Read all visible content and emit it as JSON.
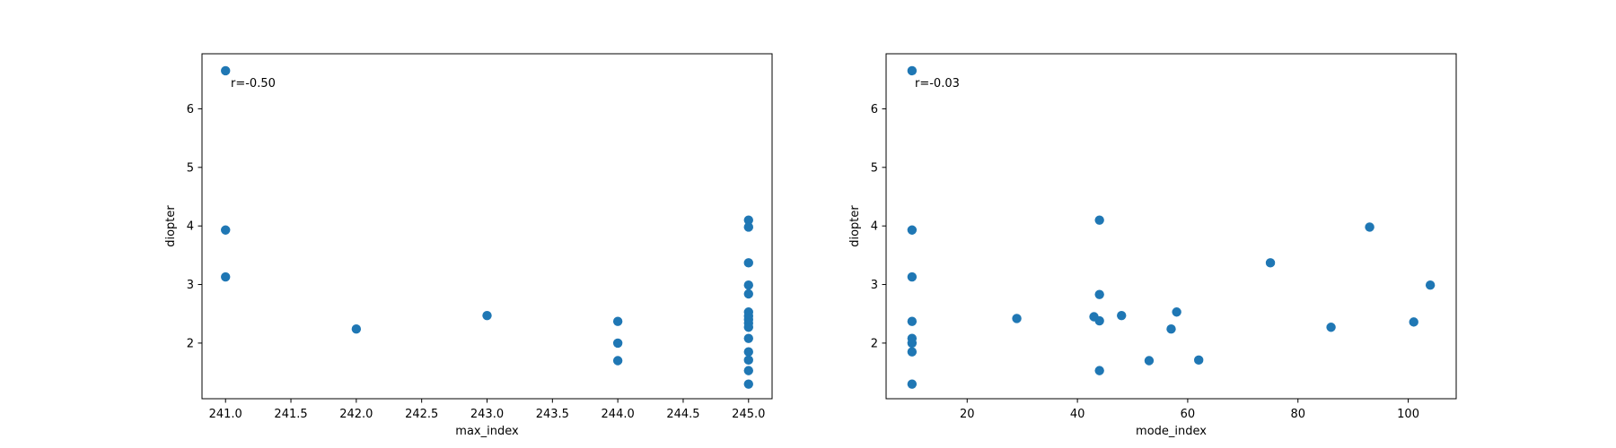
{
  "chart_data": [
    {
      "type": "scatter",
      "xlabel": "max_index",
      "ylabel": "diopter",
      "annotation": "r=-0.50",
      "xlim": [
        240.82,
        245.18
      ],
      "ylim": [
        1.05,
        6.94
      ],
      "xticks": [
        241.0,
        241.5,
        242.0,
        242.5,
        243.0,
        243.5,
        244.0,
        244.5,
        245.0
      ],
      "xtick_labels": [
        "241.0",
        "241.5",
        "242.0",
        "242.5",
        "243.0",
        "243.5",
        "244.0",
        "244.5",
        "245.0"
      ],
      "yticks": [
        2,
        3,
        4,
        5,
        6
      ],
      "ytick_labels": [
        "2",
        "3",
        "4",
        "5",
        "6"
      ],
      "color": "#1f77b4",
      "grid": false,
      "points": [
        {
          "x": 241,
          "y": 6.65
        },
        {
          "x": 241,
          "y": 3.93
        },
        {
          "x": 241,
          "y": 3.13
        },
        {
          "x": 242,
          "y": 2.24
        },
        {
          "x": 243,
          "y": 2.47
        },
        {
          "x": 244,
          "y": 2.37
        },
        {
          "x": 244,
          "y": 2.0
        },
        {
          "x": 244,
          "y": 1.7
        },
        {
          "x": 245,
          "y": 4.1
        },
        {
          "x": 245,
          "y": 3.98
        },
        {
          "x": 245,
          "y": 3.37
        },
        {
          "x": 245,
          "y": 2.99
        },
        {
          "x": 245,
          "y": 2.84
        },
        {
          "x": 245,
          "y": 2.53
        },
        {
          "x": 245,
          "y": 2.46
        },
        {
          "x": 245,
          "y": 2.4
        },
        {
          "x": 245,
          "y": 2.34
        },
        {
          "x": 245,
          "y": 2.27
        },
        {
          "x": 245,
          "y": 2.08
        },
        {
          "x": 245,
          "y": 1.85
        },
        {
          "x": 245,
          "y": 1.71
        },
        {
          "x": 245,
          "y": 1.53
        },
        {
          "x": 245,
          "y": 1.3
        }
      ]
    },
    {
      "type": "scatter",
      "xlabel": "mode_index",
      "ylabel": "diopter",
      "annotation": "r=-0.03",
      "xlim": [
        5.3,
        108.7
      ],
      "ylim": [
        1.05,
        6.94
      ],
      "xticks": [
        20,
        40,
        60,
        80,
        100
      ],
      "xtick_labels": [
        "20",
        "40",
        "60",
        "80",
        "100"
      ],
      "yticks": [
        2,
        3,
        4,
        5,
        6
      ],
      "ytick_labels": [
        "2",
        "3",
        "4",
        "5",
        "6"
      ],
      "color": "#1f77b4",
      "grid": false,
      "points": [
        {
          "x": 10,
          "y": 6.65
        },
        {
          "x": 10,
          "y": 3.93
        },
        {
          "x": 10,
          "y": 3.13
        },
        {
          "x": 10,
          "y": 2.37
        },
        {
          "x": 10,
          "y": 2.08
        },
        {
          "x": 10,
          "y": 2.0
        },
        {
          "x": 10,
          "y": 1.85
        },
        {
          "x": 10,
          "y": 1.3
        },
        {
          "x": 29,
          "y": 2.42
        },
        {
          "x": 43,
          "y": 2.45
        },
        {
          "x": 44,
          "y": 4.1
        },
        {
          "x": 44,
          "y": 2.83
        },
        {
          "x": 44,
          "y": 2.38
        },
        {
          "x": 44,
          "y": 1.53
        },
        {
          "x": 48,
          "y": 2.47
        },
        {
          "x": 53,
          "y": 1.7
        },
        {
          "x": 57,
          "y": 2.24
        },
        {
          "x": 58,
          "y": 2.53
        },
        {
          "x": 62,
          "y": 1.71
        },
        {
          "x": 75,
          "y": 3.37
        },
        {
          "x": 86,
          "y": 2.27
        },
        {
          "x": 93,
          "y": 3.98
        },
        {
          "x": 101,
          "y": 2.36
        },
        {
          "x": 104,
          "y": 2.99
        }
      ]
    }
  ]
}
